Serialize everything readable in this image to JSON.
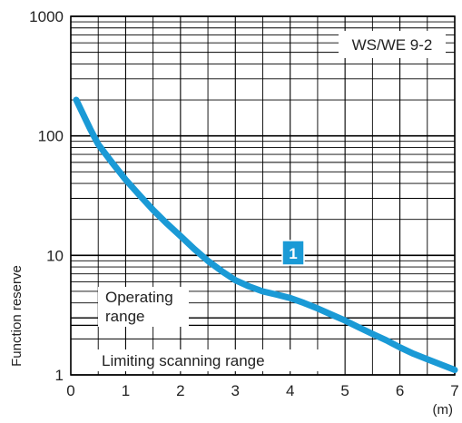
{
  "chart_data": {
    "type": "line",
    "title": "",
    "xlabel": "",
    "ylabel": "Function reserve",
    "x_unit": "(m)",
    "xlim": [
      0,
      7
    ],
    "ylim": [
      1,
      1000
    ],
    "yscale": "log",
    "grid": true,
    "x_ticks": [
      "0",
      "1",
      "2",
      "3",
      "4",
      "5",
      "6",
      "7"
    ],
    "y_ticks": [
      "1",
      "10",
      "100",
      "1000"
    ],
    "series": [
      {
        "curve_label": "1",
        "color": "#1a9ad6",
        "x": [
          0.1,
          0.2,
          0.35,
          0.5,
          0.75,
          1.0,
          1.25,
          1.5,
          1.75,
          2.0,
          2.25,
          2.5,
          2.75,
          3.0,
          3.25,
          3.5,
          3.75,
          4.0,
          4.25,
          4.5,
          4.75,
          5.0,
          5.25,
          5.5,
          5.75,
          6.0,
          6.25,
          6.5,
          6.75,
          7.0
        ],
        "y": [
          200,
          160,
          115,
          85,
          60,
          43,
          32,
          24,
          18.5,
          14.5,
          11.3,
          9.0,
          7.4,
          6.2,
          5.5,
          5.0,
          4.7,
          4.4,
          4.0,
          3.6,
          3.2,
          2.85,
          2.5,
          2.2,
          1.95,
          1.7,
          1.5,
          1.35,
          1.22,
          1.1
        ]
      }
    ],
    "annotations": {
      "model_label": "WS/WE 9-2",
      "operating_range": [
        "Operating",
        "range"
      ],
      "limiting_range": "Limiting scanning range",
      "operating_range_min_y": 3,
      "limiting_range_max_y": 2.6
    }
  },
  "colors": {
    "curve": "#1a9ad6",
    "badge": "#1a9ad6",
    "grid": "#000000",
    "text": "#222222"
  }
}
